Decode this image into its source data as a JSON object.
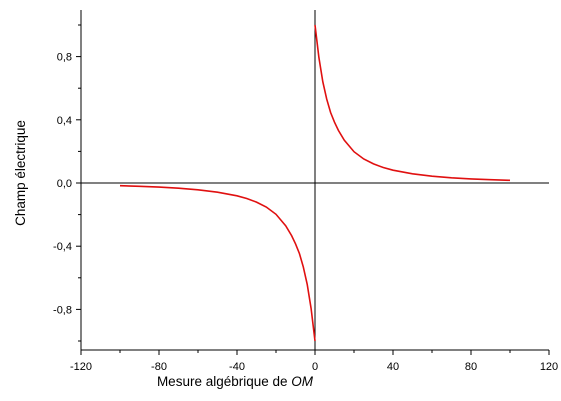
{
  "chart_data": {
    "type": "line",
    "title": "",
    "xlabel": "Mesure algébrique de",
    "xlabel_italic": "OM",
    "ylabel": "Champ électrique",
    "xlim": [
      -120,
      120
    ],
    "ylim": [
      -1.05,
      1.1
    ],
    "xticks": [
      -120,
      -80,
      -40,
      0,
      40,
      80,
      120
    ],
    "xtick_labels": [
      "-120",
      "-80",
      "-40",
      "0",
      "40",
      "80",
      "120"
    ],
    "yticks": [
      -0.8,
      -0.4,
      0.0,
      0.4,
      0.8
    ],
    "ytick_labels": [
      "-0,8",
      "-0,4",
      "0,0",
      "0,4",
      "0,8"
    ],
    "grid": false,
    "legend": "none",
    "line_color": "#e01010",
    "series": [
      {
        "x": [
          -100,
          -90,
          -80,
          -70,
          -60,
          -50,
          -40,
          -35,
          -30,
          -25,
          -20,
          -15,
          -12,
          -10,
          -8,
          -6,
          -4,
          -2,
          0
        ],
        "y": [
          -0.017,
          -0.021,
          -0.026,
          -0.033,
          -0.043,
          -0.058,
          -0.081,
          -0.098,
          -0.121,
          -0.152,
          -0.198,
          -0.271,
          -0.333,
          -0.385,
          -0.446,
          -0.531,
          -0.641,
          -0.794,
          -1.0
        ]
      },
      {
        "x": [
          0,
          2,
          4,
          6,
          8,
          10,
          12,
          15,
          20,
          25,
          30,
          35,
          40,
          50,
          60,
          70,
          80,
          90,
          100
        ],
        "y": [
          1.0,
          0.794,
          0.641,
          0.531,
          0.446,
          0.385,
          0.333,
          0.271,
          0.198,
          0.152,
          0.121,
          0.098,
          0.081,
          0.058,
          0.043,
          0.033,
          0.026,
          0.021,
          0.017
        ]
      }
    ]
  }
}
